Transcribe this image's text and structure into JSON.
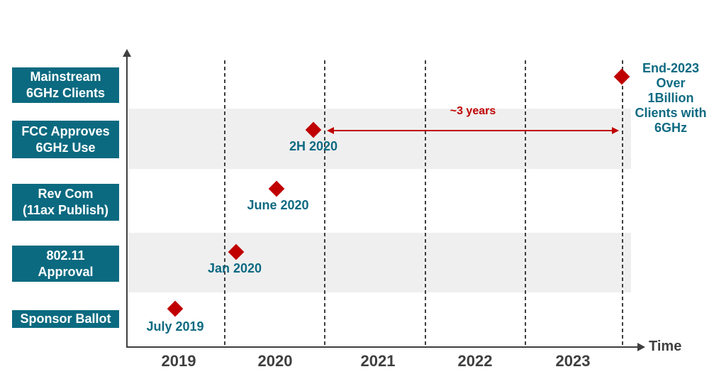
{
  "colors": {
    "category_box_teal": "#0b6a80",
    "milestone_text_teal": "#0e6a82",
    "marker_red": "#c00000",
    "annotation_red": "#c00000",
    "row_band_gray": "#efefef",
    "axis_gray": "#3f3f3f"
  },
  "chart_data": {
    "type": "scatter",
    "xlabel": "Time",
    "x_ticks": [
      "2019",
      "2020",
      "2021",
      "2022",
      "2023"
    ],
    "x_range": [
      2019,
      2024
    ],
    "grid": "vertical-dashed-at-year-boundaries",
    "marker": {
      "shape": "diamond",
      "color": "#c00000"
    },
    "categories": [
      "Mainstream\n6GHz Clients",
      "FCC Approves\n6GHz Use",
      "Rev Com\n(11ax Publish)",
      "802.11\nApproval",
      "Sponsor Ballot"
    ],
    "shaded_rows": [
      "FCC Approves 6GHz Use",
      "802.11 Approval"
    ],
    "points": [
      {
        "category": "Sponsor Ballot",
        "label": "July 2019",
        "x": 2019.5
      },
      {
        "category": "802.11 Approval",
        "label": "Jan 2020",
        "x": 2020.0
      },
      {
        "category": "Rev Com (11ax Publish)",
        "label": "June 2020",
        "x": 2020.5
      },
      {
        "category": "FCC Approves 6GHz Use",
        "label": "2H 2020",
        "x": 2020.9
      },
      {
        "category": "Mainstream 6GHz Clients",
        "label": "End-2023\nOver\n1Billion\nClients with\n6GHz",
        "x": 2024.0
      }
    ],
    "annotation": {
      "text": "~3 years",
      "from_x": 2020.9,
      "to_x": 2024.0,
      "style": "double-headed-arrow"
    }
  }
}
